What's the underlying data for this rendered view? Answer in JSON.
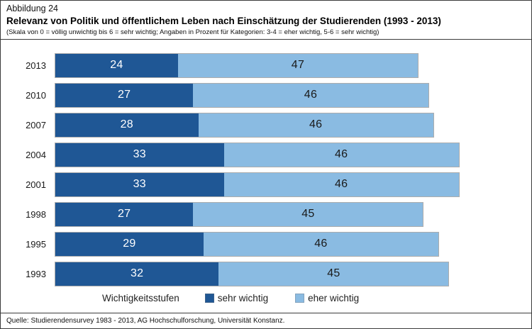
{
  "figure": {
    "label": "Abbildung 24",
    "title": "Relevanz von Politik und öffentlichem Leben nach Einschätzung der Studierenden (1993 - 2013)",
    "subtitle": "(Skala von 0 = völlig unwichtig bis 6 = sehr wichtig; Angaben in Prozent für Kategorien: 3-4 = eher wichtig, 5-6 = sehr wichtig)",
    "source": "Quelle: Studierendensurvey 1983 - 2013, AG Hochschulforschung, Universität Konstanz."
  },
  "chart_data": {
    "type": "bar",
    "orientation": "horizontal",
    "stacked": true,
    "units": "percent",
    "categories": [
      "2013",
      "2010",
      "2007",
      "2004",
      "2001",
      "1998",
      "1995",
      "1993"
    ],
    "series": [
      {
        "name": "sehr wichtig",
        "color": "#1F5795",
        "label_color": "#FFFFFF",
        "values": [
          24,
          27,
          28,
          33,
          33,
          27,
          29,
          32
        ]
      },
      {
        "name": "eher wichtig",
        "color": "#8ABBE2",
        "label_color": "#1A1A1A",
        "values": [
          47,
          46,
          46,
          46,
          46,
          45,
          46,
          45
        ]
      }
    ],
    "legend_title": "Wichtigkeitsstufen",
    "legend_position": "bottom",
    "value_labels": "inside",
    "axes_hidden": true
  }
}
